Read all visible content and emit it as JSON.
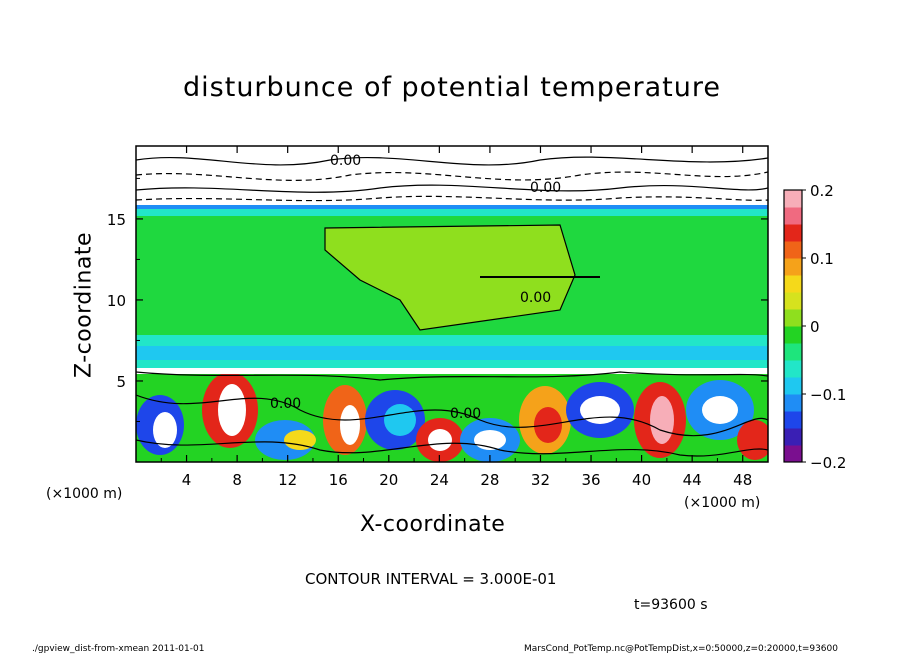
{
  "chart_data": {
    "type": "heatmap",
    "title": "disturbunce of potential temperature",
    "xlabel": "X-coordinate",
    "ylabel": "Z-coordinate",
    "x_unit": "(×1000 m)",
    "y_unit": "(×1000 m)",
    "xlim": [
      0,
      50
    ],
    "ylim": [
      0,
      19.5
    ],
    "x_ticks": [
      4,
      8,
      12,
      16,
      20,
      24,
      28,
      32,
      36,
      40,
      44,
      48
    ],
    "y_ticks": [
      5,
      10,
      15
    ],
    "colorbar": {
      "range": [
        -0.2,
        0.2
      ],
      "tick_values": [
        0.2,
        0.1,
        0,
        -0.1,
        -0.2
      ],
      "tick_labels": [
        "0.2",
        "0.1",
        "0",
        "−0.1",
        "−0.2"
      ],
      "colors": [
        "#7a0f8f",
        "#3a1fb4",
        "#1e46ea",
        "#1f8df5",
        "#1fc8f0",
        "#22e6c8",
        "#1ee57c",
        "#23d323",
        "#8fdf1e",
        "#d6e21e",
        "#f5d91a",
        "#f5a21a",
        "#f06418",
        "#e3261a",
        "#f06a80",
        "#f7aeb8"
      ]
    },
    "contour_labels": [
      "0.00",
      "0.00",
      "0.00",
      "0.00",
      "0.00"
    ],
    "contour_interval": "CONTOUR INTERVAL = 3.000E-01",
    "time_label": "t=93600 s"
  },
  "footer": {
    "left": "./gpview_dist-from-xmean   2011-01-01",
    "right": "MarsCond_PotTemp.nc@PotTempDist,x=0:50000,z=0:20000,t=93600"
  }
}
